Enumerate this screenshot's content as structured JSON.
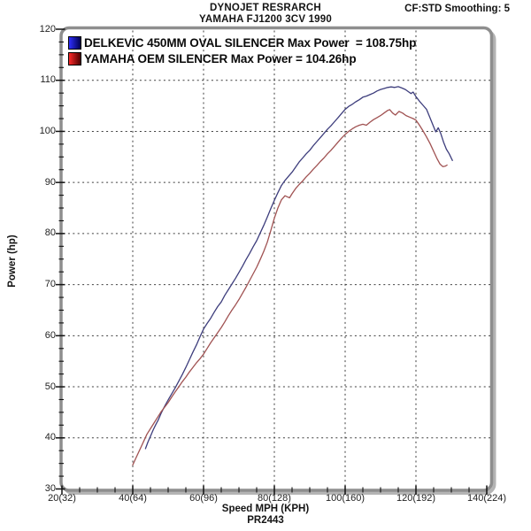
{
  "header": {
    "title_line1": "DYNOJET RESRARCH",
    "title_line2": "YAMAHA FJ1200 3CV 1990",
    "corner_text": "CF:STD Smoothing: 5"
  },
  "footer": {
    "xlabel": "Speed MPH (KPH)",
    "run_id": "PR2443"
  },
  "chart_data": {
    "type": "line",
    "title": "DYNOJET RESRARCH",
    "subtitle": "YAMAHA FJ1200 3CV 1990",
    "xlabel": "Speed MPH (KPH)",
    "ylabel": "Power (hp)",
    "xlim": [
      20,
      140
    ],
    "ylim": [
      30,
      120
    ],
    "x_major_ticks": [
      20,
      40,
      60,
      80,
      100,
      120,
      140
    ],
    "x_tick_labels": [
      "20(32)",
      "40(64)",
      "60(96)",
      "80(128)",
      "100(160)",
      "120(192)",
      "140(224)"
    ],
    "x_minor_step": 5,
    "y_major_ticks": [
      30,
      40,
      50,
      60,
      70,
      80,
      90,
      100,
      110,
      120
    ],
    "y_minor_step": 2.5,
    "grid": "dashed",
    "grid_color": "#3c3c3c",
    "frame_color": "#8e8e8e",
    "legend_position": "top-left-inside",
    "series": [
      {
        "id": "delkevic-450mm-oval-silencer",
        "name": "DELKEVIC 450MM OVAL SILENCER",
        "legend_label": "DELKEVIC 450MM OVAL SILENCER Max Power  = 108.75hp",
        "max_power_hp": 108.75,
        "color": "#3d3d7c",
        "swatch": [
          "#2f2fff",
          "#00004d"
        ],
        "points": [
          [
            43.6,
            37.9
          ],
          [
            44.3,
            39.2
          ],
          [
            45,
            40.3
          ],
          [
            45.8,
            41.6
          ],
          [
            46.5,
            42.6
          ],
          [
            47.2,
            43.5
          ],
          [
            48,
            44.8
          ],
          [
            48.8,
            45.9
          ],
          [
            49.5,
            46.8
          ],
          [
            50.3,
            47.8
          ],
          [
            51,
            48.6
          ],
          [
            52,
            49.8
          ],
          [
            53,
            51.1
          ],
          [
            54,
            52.4
          ],
          [
            55,
            53.8
          ],
          [
            56,
            55.3
          ],
          [
            57,
            56.8
          ],
          [
            58,
            58.2
          ],
          [
            59,
            59.8
          ],
          [
            60,
            61.3
          ],
          [
            61,
            62.4
          ],
          [
            62,
            63.4
          ],
          [
            63,
            64.6
          ],
          [
            64,
            65.7
          ],
          [
            65,
            66.6
          ],
          [
            66,
            67.9
          ],
          [
            67,
            69.0
          ],
          [
            68,
            70.1
          ],
          [
            69,
            71.2
          ],
          [
            70,
            72.4
          ],
          [
            71,
            73.6
          ],
          [
            72,
            74.9
          ],
          [
            73,
            76.1
          ],
          [
            74,
            77.4
          ],
          [
            75,
            78.6
          ],
          [
            76,
            80.1
          ],
          [
            77,
            81.6
          ],
          [
            78,
            83.2
          ],
          [
            79,
            84.9
          ],
          [
            80,
            86.5
          ],
          [
            81,
            88.0
          ],
          [
            82,
            89.4
          ],
          [
            83,
            90.4
          ],
          [
            84,
            91.2
          ],
          [
            85,
            92.0
          ],
          [
            86,
            93.0
          ],
          [
            87,
            94.0
          ],
          [
            88,
            94.8
          ],
          [
            89,
            95.6
          ],
          [
            90,
            96.3
          ],
          [
            91,
            97.2
          ],
          [
            92,
            98.0
          ],
          [
            93,
            98.8
          ],
          [
            94,
            99.6
          ],
          [
            95,
            100.4
          ],
          [
            96,
            101.1
          ],
          [
            97,
            101.9
          ],
          [
            98,
            102.7
          ],
          [
            99,
            103.5
          ],
          [
            100,
            104.3
          ],
          [
            101,
            104.9
          ],
          [
            102,
            105.3
          ],
          [
            103,
            105.8
          ],
          [
            104,
            106.2
          ],
          [
            105,
            106.7
          ],
          [
            106,
            106.9
          ],
          [
            107,
            107.2
          ],
          [
            108,
            107.5
          ],
          [
            109,
            107.9
          ],
          [
            110,
            108.2
          ],
          [
            111,
            108.4
          ],
          [
            112,
            108.6
          ],
          [
            113,
            108.7
          ],
          [
            114,
            108.6
          ],
          [
            115,
            108.75
          ],
          [
            116,
            108.5
          ],
          [
            117,
            108.2
          ],
          [
            118,
            107.7
          ],
          [
            118.6,
            107.4
          ],
          [
            119.2,
            107.7
          ],
          [
            120,
            106.8
          ],
          [
            121,
            105.9
          ],
          [
            122,
            105.1
          ],
          [
            123,
            104.3
          ],
          [
            124,
            102.6
          ],
          [
            125,
            100.9
          ],
          [
            125.6,
            99.9
          ],
          [
            126.3,
            100.7
          ],
          [
            127,
            99.6
          ],
          [
            127.8,
            97.9
          ],
          [
            128.6,
            96.5
          ],
          [
            129.4,
            95.6
          ],
          [
            130.3,
            94.3
          ]
        ]
      },
      {
        "id": "yamaha-oem-silencer",
        "name": "YAMAHA OEM SILENCER",
        "legend_label": "YAMAHA OEM SILENCER Max Power = 104.26hp",
        "max_power_hp": 104.26,
        "color": "#a05252",
        "swatch": [
          "#ff2a2a",
          "#4d0000"
        ],
        "points": [
          [
            40,
            34.7
          ],
          [
            40.8,
            35.9
          ],
          [
            41.6,
            37.1
          ],
          [
            42.4,
            38.3
          ],
          [
            43.2,
            39.5
          ],
          [
            44,
            40.7
          ],
          [
            45,
            41.8
          ],
          [
            46,
            42.9
          ],
          [
            47,
            44.0
          ],
          [
            48,
            45.1
          ],
          [
            49,
            46.0
          ],
          [
            50,
            46.9
          ],
          [
            51,
            48.0
          ],
          [
            52,
            49.0
          ],
          [
            53,
            50.0
          ],
          [
            54,
            51.0
          ],
          [
            55,
            51.9
          ],
          [
            56,
            52.9
          ],
          [
            57,
            53.8
          ],
          [
            58,
            54.7
          ],
          [
            59,
            55.5
          ],
          [
            60,
            56.4
          ],
          [
            61,
            57.5
          ],
          [
            62,
            58.6
          ],
          [
            63,
            59.6
          ],
          [
            64,
            60.6
          ],
          [
            65,
            61.6
          ],
          [
            66,
            62.7
          ],
          [
            67,
            63.9
          ],
          [
            68,
            65.0
          ],
          [
            69,
            66.0
          ],
          [
            70,
            67.1
          ],
          [
            71,
            68.3
          ],
          [
            72,
            69.5
          ],
          [
            73,
            70.8
          ],
          [
            74,
            72.1
          ],
          [
            75,
            73.4
          ],
          [
            76,
            74.9
          ],
          [
            77,
            76.5
          ],
          [
            78,
            78.3
          ],
          [
            79,
            80.6
          ],
          [
            80,
            83.0
          ],
          [
            81,
            85.0
          ],
          [
            82,
            86.6
          ],
          [
            83,
            87.4
          ],
          [
            83.6,
            87.2
          ],
          [
            84.3,
            87.0
          ],
          [
            85,
            87.8
          ],
          [
            86,
            88.8
          ],
          [
            87,
            89.6
          ],
          [
            88,
            90.3
          ],
          [
            89,
            91.1
          ],
          [
            90,
            91.8
          ],
          [
            91,
            92.6
          ],
          [
            92,
            93.3
          ],
          [
            93,
            94.1
          ],
          [
            94,
            94.8
          ],
          [
            95,
            95.6
          ],
          [
            96,
            96.3
          ],
          [
            97,
            97.1
          ],
          [
            98,
            97.9
          ],
          [
            99,
            98.7
          ],
          [
            100,
            99.4
          ],
          [
            101,
            100.0
          ],
          [
            102,
            100.5
          ],
          [
            103,
            100.9
          ],
          [
            104,
            101.2
          ],
          [
            105,
            101.4
          ],
          [
            106,
            101.2
          ],
          [
            107,
            101.8
          ],
          [
            108,
            102.3
          ],
          [
            109,
            102.7
          ],
          [
            110,
            103.1
          ],
          [
            111,
            103.6
          ],
          [
            112,
            104.1
          ],
          [
            112.6,
            104.26
          ],
          [
            113.4,
            103.6
          ],
          [
            114.2,
            103.2
          ],
          [
            115.2,
            103.9
          ],
          [
            116.2,
            103.6
          ],
          [
            117.2,
            103.1
          ],
          [
            118.2,
            102.8
          ],
          [
            119.2,
            102.5
          ],
          [
            120,
            102.2
          ],
          [
            121,
            101.2
          ],
          [
            122,
            100.1
          ],
          [
            123,
            98.9
          ],
          [
            124,
            97.6
          ],
          [
            125,
            96.1
          ],
          [
            126,
            94.6
          ],
          [
            126.8,
            93.6
          ],
          [
            127.6,
            93.1
          ],
          [
            128.3,
            93.2
          ],
          [
            128.8,
            93.4
          ]
        ]
      }
    ]
  }
}
